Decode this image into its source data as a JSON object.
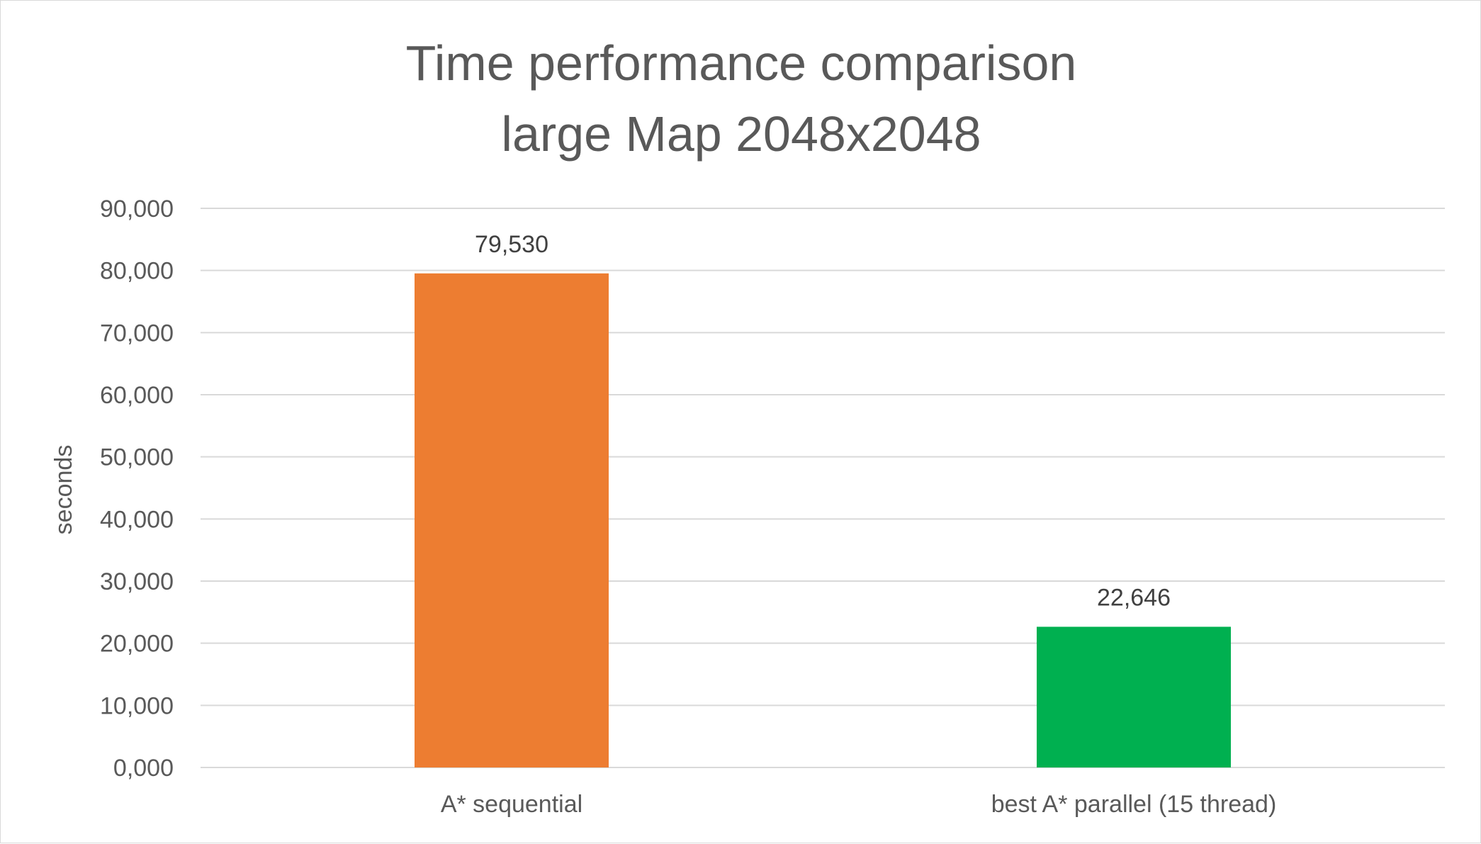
{
  "chart_data": {
    "type": "bar",
    "title_lines": [
      "Time performance comparison",
      "large Map 2048x2048"
    ],
    "xlabel": "",
    "ylabel": "seconds",
    "categories": [
      "A* sequential",
      "best A* parallel (15 thread)"
    ],
    "values": [
      79.53,
      22.646
    ],
    "value_labels": [
      "79,530",
      "22,646"
    ],
    "bar_colors": [
      "#ED7D31",
      "#00B050"
    ],
    "ylim": [
      0,
      90
    ],
    "yticks": [
      0,
      10,
      20,
      30,
      40,
      50,
      60,
      70,
      80,
      90
    ],
    "ytick_labels": [
      "0,000",
      "10,000",
      "20,000",
      "30,000",
      "40,000",
      "50,000",
      "60,000",
      "70,000",
      "80,000",
      "90,000"
    ],
    "grid": true,
    "gridline_color": "#d9d9d9",
    "legend": "none"
  }
}
